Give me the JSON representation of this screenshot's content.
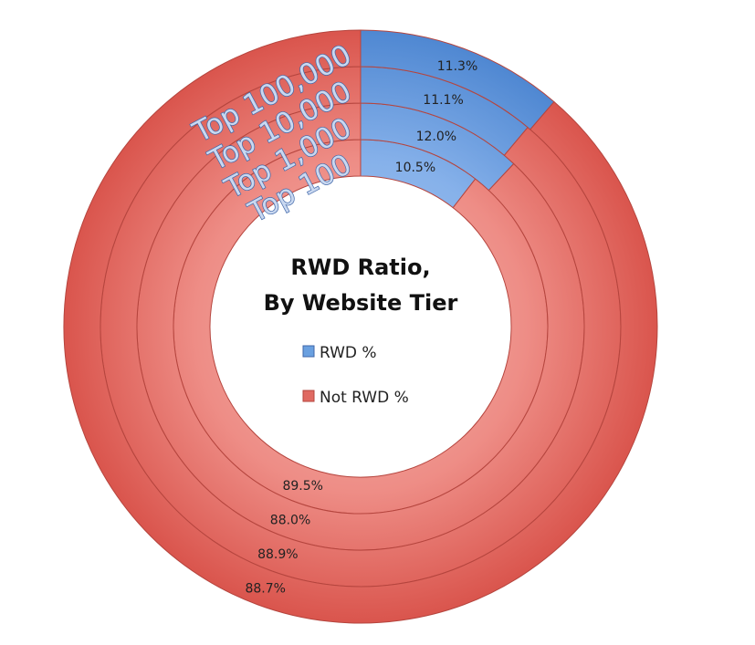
{
  "chart_data": {
    "type": "donut",
    "title_lines": [
      "RWD Ratio,",
      "By Website Tier"
    ],
    "rings": [
      {
        "tier": "Top 100",
        "rwd": 10.5,
        "not_rwd": 89.5,
        "rwd_label": "10.5%",
        "not_rwd_label": "89.5%"
      },
      {
        "tier": "Top 1,000",
        "rwd": 12.0,
        "not_rwd": 88.0,
        "rwd_label": "12.0%",
        "not_rwd_label": "88.0%"
      },
      {
        "tier": "Top 10,000",
        "rwd": 11.1,
        "not_rwd": 88.9,
        "rwd_label": "11.1%",
        "not_rwd_label": "88.9%"
      },
      {
        "tier": "Top 100,000",
        "rwd": 11.3,
        "not_rwd": 88.7,
        "rwd_label": "11.3%",
        "not_rwd_label": "88.7%"
      }
    ],
    "legend": [
      {
        "label": "RWD %",
        "color": "#6aa0e0"
      },
      {
        "label": "Not RWD %",
        "color": "#e06a62"
      }
    ],
    "colors": {
      "rwd": "#6aa0e0",
      "not_rwd": "#e06a62",
      "border": "#b5453e"
    }
  }
}
